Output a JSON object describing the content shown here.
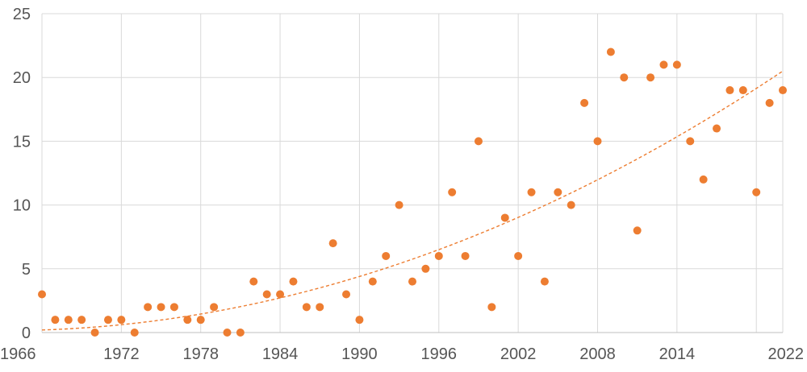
{
  "chart_data": {
    "type": "scatter",
    "title": "",
    "xlabel": "",
    "ylabel": "",
    "xlim": [
      1966,
      2022
    ],
    "ylim": [
      0,
      25
    ],
    "x_ticks": [
      1966,
      1972,
      1978,
      1984,
      1990,
      1996,
      2002,
      2008,
      2014,
      2022
    ],
    "x_grid": [
      1966,
      1972,
      1978,
      1984,
      1990,
      1996,
      2002,
      2008,
      2014,
      2020
    ],
    "y_ticks": [
      0,
      5,
      10,
      15,
      20,
      25
    ],
    "grid": true,
    "legend": "none",
    "colors": {
      "points": "#ED7D31",
      "trend": "#ED7D31",
      "grid": "#D9D9D9",
      "tick_text": "#555555"
    },
    "series": [
      {
        "points": [
          [
            1966,
            3
          ],
          [
            1967,
            1
          ],
          [
            1968,
            1
          ],
          [
            1969,
            1
          ],
          [
            1970,
            0
          ],
          [
            1971,
            1
          ],
          [
            1972,
            1
          ],
          [
            1973,
            0
          ],
          [
            1974,
            2
          ],
          [
            1975,
            2
          ],
          [
            1976,
            2
          ],
          [
            1977,
            1
          ],
          [
            1978,
            1
          ],
          [
            1979,
            2
          ],
          [
            1980,
            0
          ],
          [
            1981,
            0
          ],
          [
            1982,
            4
          ],
          [
            1983,
            3
          ],
          [
            1984,
            3
          ],
          [
            1985,
            4
          ],
          [
            1986,
            2
          ],
          [
            1987,
            2
          ],
          [
            1988,
            7
          ],
          [
            1989,
            3
          ],
          [
            1990,
            1
          ],
          [
            1991,
            4
          ],
          [
            1992,
            6
          ],
          [
            1993,
            10
          ],
          [
            1994,
            4
          ],
          [
            1995,
            5
          ],
          [
            1996,
            6
          ],
          [
            1997,
            11
          ],
          [
            1998,
            6
          ],
          [
            1999,
            15
          ],
          [
            2000,
            2
          ],
          [
            2001,
            9
          ],
          [
            2002,
            6
          ],
          [
            2003,
            11
          ],
          [
            2004,
            4
          ],
          [
            2005,
            11
          ],
          [
            2006,
            10
          ],
          [
            2007,
            18
          ],
          [
            2008,
            15
          ],
          [
            2009,
            22
          ],
          [
            2010,
            20
          ],
          [
            2011,
            8
          ],
          [
            2012,
            20
          ],
          [
            2013,
            21
          ],
          [
            2014,
            21
          ],
          [
            2015,
            15
          ],
          [
            2016,
            12
          ],
          [
            2017,
            16
          ],
          [
            2018,
            19
          ],
          [
            2019,
            19
          ],
          [
            2020,
            11
          ],
          [
            2021,
            18
          ],
          [
            2022,
            19
          ]
        ]
      }
    ],
    "trendline": {
      "type": "polynomial-2",
      "style": "dashed",
      "points": [
        [
          1966,
          0.2
        ],
        [
          1972,
          0.5
        ],
        [
          1984,
          2.6
        ],
        [
          1996,
          6.5
        ],
        [
          2008,
          12.3
        ],
        [
          2014,
          15.8
        ],
        [
          2022,
          20.5
        ]
      ]
    }
  }
}
